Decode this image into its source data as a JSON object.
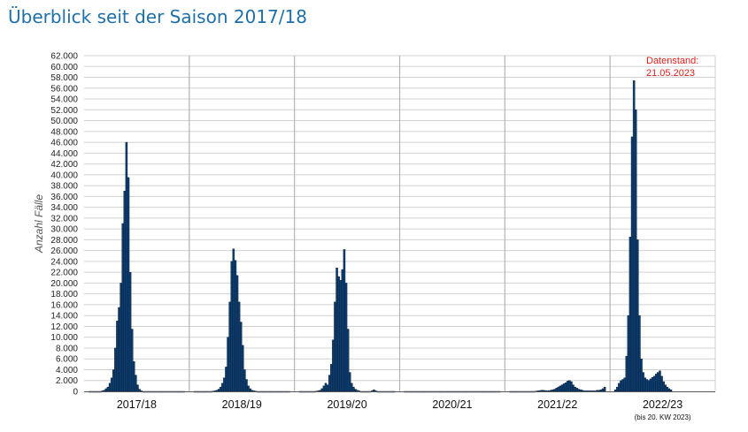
{
  "page": {
    "title": "Überblick seit der Saison 2017/18"
  },
  "colors": {
    "bar_fill": "#0e3f73",
    "bar_stroke": "#04152a",
    "grid": "#d0d0d0",
    "separator": "#b4b4b4",
    "title": "#1f6fa8",
    "stamp": "#e0201c"
  },
  "chart_data": {
    "type": "bar",
    "title": "",
    "ylabel": "Anzahl Fälle",
    "xlabel": "",
    "ylim": [
      0,
      62000
    ],
    "y_tick_step": 2000,
    "y_tick_labels": [
      "0",
      "2.000",
      "4.000",
      "6.000",
      "8.000",
      "10.000",
      "12.000",
      "14.000",
      "16.000",
      "18.000",
      "20.000",
      "22.000",
      "24.000",
      "26.000",
      "28.000",
      "30.000",
      "32.000",
      "34.000",
      "36.000",
      "38.000",
      "40.000",
      "42.000",
      "44.000",
      "46.000",
      "48.000",
      "50.000",
      "52.000",
      "54.000",
      "56.000",
      "58.000",
      "60.000",
      "62.000"
    ],
    "grid": true,
    "legend": "none",
    "annotation": {
      "line1": "Datenstand:",
      "line2": "21.05.2023"
    },
    "seasons": [
      {
        "label": "2017/18",
        "note": "",
        "values": [
          0,
          0,
          0,
          0,
          0,
          0,
          0,
          100,
          200,
          500,
          800,
          1500,
          2500,
          4000,
          8000,
          13000,
          15500,
          20000,
          31000,
          37000,
          46000,
          39500,
          22000,
          11500,
          5500,
          3000,
          1200,
          400,
          100,
          0,
          0,
          0,
          0,
          0,
          0,
          0,
          0,
          0,
          0,
          0,
          0,
          0,
          0,
          0,
          0,
          0,
          0,
          0,
          0,
          0,
          0,
          0
        ]
      },
      {
        "label": "2018/19",
        "note": "",
        "values": [
          0,
          0,
          0,
          0,
          0,
          0,
          0,
          0,
          0,
          0,
          50,
          100,
          200,
          400,
          800,
          1500,
          2500,
          4500,
          10000,
          16500,
          24000,
          26300,
          24200,
          21400,
          16500,
          12800,
          8500,
          4000,
          2200,
          1000,
          500,
          200,
          100,
          50,
          0,
          0,
          0,
          0,
          0,
          0,
          0,
          0,
          0,
          0,
          0,
          0,
          0,
          0,
          0,
          0,
          0,
          0
        ]
      },
      {
        "label": "2019/20",
        "note": "",
        "values": [
          0,
          0,
          0,
          0,
          0,
          0,
          0,
          0,
          0,
          50,
          100,
          200,
          500,
          1000,
          1500,
          1200,
          3000,
          5000,
          9500,
          16500,
          22800,
          21200,
          20500,
          22500,
          26200,
          20000,
          11500,
          3500,
          1500,
          800,
          400,
          200,
          100,
          0,
          0,
          0,
          0,
          0,
          0,
          100,
          300,
          100,
          0,
          0,
          0,
          0,
          0,
          0,
          0,
          0,
          0,
          0
        ]
      },
      {
        "label": "2020/21",
        "note": "",
        "values": [
          0,
          0,
          0,
          0,
          0,
          0,
          0,
          0,
          0,
          0,
          0,
          0,
          0,
          0,
          0,
          0,
          0,
          0,
          0,
          0,
          0,
          0,
          0,
          0,
          0,
          0,
          0,
          0,
          0,
          0,
          0,
          0,
          0,
          0,
          0,
          0,
          0,
          0,
          0,
          0,
          0,
          0,
          0,
          0,
          0,
          0,
          0,
          0,
          0,
          0,
          0,
          0
        ]
      },
      {
        "label": "2021/22",
        "note": "",
        "values": [
          0,
          0,
          0,
          0,
          0,
          0,
          0,
          0,
          0,
          0,
          0,
          0,
          0,
          0,
          50,
          100,
          150,
          200,
          200,
          150,
          100,
          150,
          200,
          300,
          400,
          600,
          800,
          1000,
          1200,
          1400,
          1600,
          1900,
          2000,
          1800,
          1200,
          800,
          600,
          400,
          300,
          200,
          100,
          100,
          100,
          100,
          100,
          100,
          100,
          200,
          200,
          300,
          500,
          800
        ]
      },
      {
        "label": "2022/23",
        "note": "(bis 20. KW 2023)",
        "values": [
          300,
          800,
          1500,
          2000,
          2200,
          2500,
          6500,
          14000,
          28500,
          47000,
          57400,
          52000,
          28000,
          14000,
          6000,
          3500,
          2500,
          2200,
          2000,
          2300,
          2600,
          2800,
          3200,
          3500,
          3800,
          2800,
          1800,
          1200,
          800,
          500,
          300
        ]
      }
    ]
  }
}
